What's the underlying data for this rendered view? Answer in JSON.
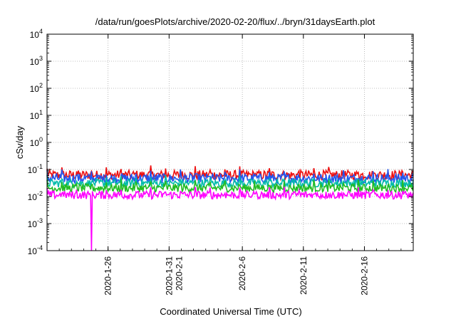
{
  "chart_data": {
    "type": "line",
    "title": "/data/run/goesPlots/archive/2020-02-20/flux/../bryn/31daysEarth.plot",
    "xlabel": "Coordinated Universal Time (UTC)",
    "ylabel": "cSv/day",
    "yscale": "log",
    "ylim": [
      0.0001,
      10000
    ],
    "xlim": [
      "2020-01-21",
      "2020-02-20"
    ],
    "grid": true,
    "legend": "none",
    "y_ticks": [
      {
        "base": "10",
        "exp": "-4",
        "value": 0.0001
      },
      {
        "base": "10",
        "exp": "-3",
        "value": 0.001
      },
      {
        "base": "10",
        "exp": "-2",
        "value": 0.01
      },
      {
        "base": "10",
        "exp": "-1",
        "value": 0.1
      },
      {
        "base": "10",
        "exp": "0",
        "value": 1
      },
      {
        "base": "10",
        "exp": "1",
        "value": 10
      },
      {
        "base": "10",
        "exp": "2",
        "value": 100
      },
      {
        "base": "10",
        "exp": "3",
        "value": 1000
      },
      {
        "base": "10",
        "exp": "4",
        "value": 10000
      }
    ],
    "x_ticks": [
      {
        "label": "2020-1-26",
        "date": "2020-01-26"
      },
      {
        "label": "2020-1-31",
        "date": "2020-01-31",
        "label2": "2020-2-1"
      },
      {
        "label": "2020-2-6",
        "date": "2020-02-06"
      },
      {
        "label": "2020-2-11",
        "date": "2020-02-11"
      },
      {
        "label": "2020-2-16",
        "date": "2020-02-16"
      }
    ],
    "series": [
      {
        "color": "#ee1111",
        "level": 0.06,
        "spread": 0.35
      },
      {
        "color": "#2255ee",
        "level": 0.045,
        "spread": 0.35
      },
      {
        "color": "#00bbaa",
        "level": 0.03,
        "spread": 0.3
      },
      {
        "color": "#22bb22",
        "level": 0.02,
        "spread": 0.3
      },
      {
        "color": "#ff00ff",
        "level": 0.011,
        "spread": 0.3
      }
    ],
    "dip": {
      "date_from": "2020-01-23",
      "date_to": "2020-01-24",
      "value": 0.0001
    }
  }
}
